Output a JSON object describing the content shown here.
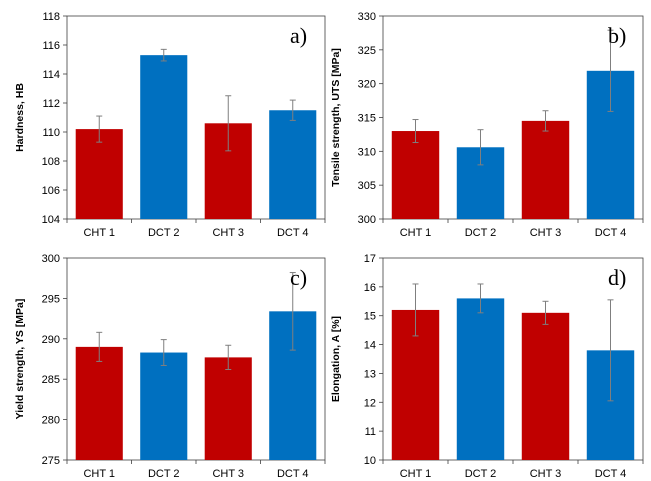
{
  "colors": {
    "red": "#C00000",
    "blue": "#0070C0",
    "error": "#7F7F7F",
    "axis": "#000000"
  },
  "chart_data": [
    {
      "type": "bar",
      "panel_label": "a)",
      "categories": [
        "CHT 1",
        "DCT 2",
        "CHT 3",
        "DCT 4"
      ],
      "values": [
        110.2,
        115.3,
        110.6,
        111.5
      ],
      "errors": [
        0.9,
        0.4,
        1.9,
        0.7
      ],
      "bar_colors": [
        "red",
        "blue",
        "red",
        "blue"
      ],
      "ylabel": "Hardness, HB",
      "ylim": [
        104,
        118
      ],
      "yticks": [
        104,
        106,
        108,
        110,
        112,
        114,
        116,
        118
      ],
      "grid": false
    },
    {
      "type": "bar",
      "panel_label": "b)",
      "categories": [
        "CHT 1",
        "DCT 2",
        "CHT 3",
        "DCT 4"
      ],
      "values": [
        313,
        310.6,
        314.5,
        321.9
      ],
      "errors": [
        1.7,
        2.6,
        1.5,
        6.0
      ],
      "bar_colors": [
        "red",
        "blue",
        "red",
        "blue"
      ],
      "ylabel": "Tensile strength, UTS [MPa]",
      "ylim": [
        300,
        330
      ],
      "yticks": [
        300,
        305,
        310,
        315,
        320,
        325,
        330
      ],
      "grid": false
    },
    {
      "type": "bar",
      "panel_label": "c)",
      "categories": [
        "CHT 1",
        "DCT 2",
        "CHT 3",
        "DCT 4"
      ],
      "values": [
        289,
        288.3,
        287.7,
        293.4
      ],
      "errors": [
        1.8,
        1.6,
        1.5,
        4.8
      ],
      "bar_colors": [
        "red",
        "blue",
        "red",
        "blue"
      ],
      "ylabel": "Yield strength, YS [MPa]",
      "ylim": [
        275,
        300
      ],
      "yticks": [
        275,
        280,
        285,
        290,
        295,
        300
      ],
      "grid": false
    },
    {
      "type": "bar",
      "panel_label": "d)",
      "categories": [
        "CHT 1",
        "DCT 2",
        "CHT 3",
        "DCT 4"
      ],
      "values": [
        15.2,
        15.6,
        15.1,
        13.8
      ],
      "errors": [
        0.9,
        0.5,
        0.4,
        1.75
      ],
      "bar_colors": [
        "red",
        "blue",
        "red",
        "blue"
      ],
      "ylabel": "Elongation, A [%]",
      "ylim": [
        10,
        17
      ],
      "yticks": [
        10,
        11,
        12,
        13,
        14,
        15,
        16,
        17
      ],
      "grid": false
    }
  ]
}
